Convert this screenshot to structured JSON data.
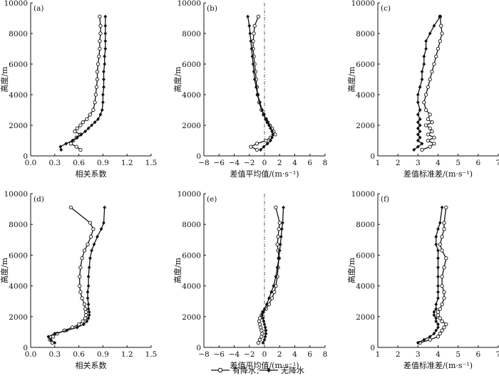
{
  "legend": {
    "rain_label": "有降水",
    "separator": ";",
    "norain_label": "无降水"
  },
  "style": {
    "line_color": "#111111",
    "refline_color": "#555555"
  },
  "chart_data": [
    {
      "type": "line",
      "panel_label": "(a)",
      "xlabel": "相关系数",
      "ylabel": "高度/m",
      "xlim": [
        0,
        1.5
      ],
      "ylim": [
        0,
        10000
      ],
      "xticks": [
        "0.0",
        "0.3",
        "0.6",
        "0.9",
        "1.2",
        "1.5"
      ],
      "yticks": [
        "0",
        "2000",
        "4000",
        "6000",
        "8000",
        "10000"
      ],
      "grid": false,
      "zero_line": false,
      "series": [
        {
          "name": "有降水",
          "marker": "open-circle",
          "x": [
            0.62,
            0.57,
            0.5,
            0.53,
            0.57,
            0.62,
            0.55,
            0.58,
            0.62,
            0.65,
            0.7,
            0.74,
            0.78,
            0.8,
            0.81,
            0.82,
            0.83,
            0.83,
            0.84,
            0.85,
            0.86,
            0.86,
            0.87,
            0.87,
            0.86
          ],
          "y": [
            400,
            600,
            800,
            1000,
            1200,
            1400,
            1600,
            1800,
            2000,
            2200,
            2400,
            2700,
            3000,
            3500,
            4000,
            4500,
            5000,
            5500,
            6000,
            6500,
            7000,
            7500,
            8000,
            8500,
            9100
          ]
        },
        {
          "name": "无降水",
          "marker": "filled-star",
          "x": [
            0.38,
            0.37,
            0.44,
            0.52,
            0.58,
            0.63,
            0.68,
            0.72,
            0.76,
            0.8,
            0.84,
            0.87,
            0.89,
            0.9,
            0.9,
            0.91,
            0.91,
            0.91,
            0.92,
            0.92,
            0.93,
            0.93,
            0.93,
            0.93,
            0.93
          ],
          "y": [
            400,
            600,
            800,
            1000,
            1200,
            1400,
            1600,
            1800,
            2000,
            2200,
            2400,
            2700,
            3000,
            3500,
            4000,
            4500,
            5000,
            5500,
            6000,
            6500,
            7000,
            7500,
            8000,
            8500,
            9100
          ]
        }
      ]
    },
    {
      "type": "line",
      "panel_label": "(b)",
      "xlabel": "差值平均值/(m·s⁻¹)",
      "ylabel": "高度/m",
      "xlim": [
        -8,
        8
      ],
      "ylim": [
        0,
        10000
      ],
      "xticks": [
        "−8",
        "−6",
        "−4",
        "−2",
        "0",
        "2",
        "4",
        "6",
        "8"
      ],
      "yticks": [
        "0",
        "2000",
        "4000",
        "6000",
        "8000",
        "10000"
      ],
      "grid": false,
      "zero_line": true,
      "series": [
        {
          "name": "有降水",
          "marker": "open-circle",
          "x": [
            -1.0,
            -1.8,
            -1.0,
            0.2,
            0.8,
            1.4,
            1.2,
            1.0,
            0.7,
            0.4,
            0.2,
            -0.1,
            -0.4,
            -0.7,
            -0.9,
            -1.0,
            -1.1,
            -1.2,
            -1.3,
            -1.4,
            -1.5,
            -1.5,
            -1.4,
            -1.3,
            -0.8
          ],
          "y": [
            400,
            600,
            800,
            1000,
            1200,
            1400,
            1600,
            1800,
            2000,
            2200,
            2400,
            2700,
            3000,
            3500,
            4000,
            4500,
            5000,
            5500,
            6000,
            6500,
            7000,
            7500,
            8000,
            8500,
            9100
          ]
        },
        {
          "name": "无降水",
          "marker": "filled-star",
          "x": [
            -0.5,
            -0.1,
            0.4,
            0.8,
            1.0,
            1.1,
            1.0,
            0.8,
            0.6,
            0.4,
            0.2,
            -0.1,
            -0.3,
            -0.6,
            -0.9,
            -1.1,
            -1.3,
            -1.4,
            -1.5,
            -1.6,
            -1.7,
            -1.8,
            -1.9,
            -2.0,
            -2.2
          ],
          "y": [
            400,
            600,
            800,
            1000,
            1200,
            1400,
            1600,
            1800,
            2000,
            2200,
            2400,
            2700,
            3000,
            3500,
            4000,
            4500,
            5000,
            5500,
            6000,
            6500,
            7000,
            7500,
            8000,
            8500,
            9100
          ]
        }
      ]
    },
    {
      "type": "line",
      "panel_label": "(c)",
      "xlabel": "差值标准差/(m·s⁻¹)",
      "ylabel": "高度/m",
      "xlim": [
        1,
        7
      ],
      "ylim": [
        0,
        10000
      ],
      "xticks": [
        "1",
        "2",
        "3",
        "4",
        "5",
        "6",
        "7"
      ],
      "yticks": [
        "0",
        "2000",
        "4000",
        "6000",
        "8000",
        "10000"
      ],
      "grid": false,
      "zero_line": false,
      "series": [
        {
          "name": "有降水",
          "marker": "open-circle",
          "x": [
            3.2,
            3.6,
            3.8,
            3.5,
            3.8,
            3.5,
            3.7,
            3.6,
            3.4,
            3.7,
            3.5,
            3.6,
            3.4,
            3.3,
            3.4,
            3.5,
            3.6,
            3.7,
            3.8,
            3.9,
            4.0,
            4.1,
            4.2,
            4.15,
            4.1
          ],
          "y": [
            400,
            600,
            800,
            1000,
            1200,
            1400,
            1600,
            1800,
            2000,
            2200,
            2400,
            2700,
            3000,
            3500,
            4000,
            4500,
            5000,
            5500,
            6000,
            6500,
            7000,
            7500,
            8000,
            8500,
            9100
          ]
        },
        {
          "name": "无降水",
          "marker": "filled-star",
          "x": [
            2.8,
            3.0,
            3.2,
            3.0,
            3.1,
            3.0,
            3.1,
            3.0,
            3.1,
            3.0,
            3.1,
            3.0,
            3.1,
            3.0,
            3.0,
            3.1,
            3.2,
            3.2,
            3.3,
            3.3,
            3.4,
            3.4,
            3.6,
            3.8,
            4.1
          ],
          "y": [
            400,
            600,
            800,
            1000,
            1200,
            1400,
            1600,
            1800,
            2000,
            2200,
            2400,
            2700,
            3000,
            3500,
            4000,
            4500,
            5000,
            5500,
            6000,
            6500,
            7000,
            7500,
            8000,
            8500,
            9100
          ]
        }
      ]
    },
    {
      "type": "line",
      "panel_label": "(d)",
      "xlabel": "相关系数",
      "ylabel": "高度/m",
      "xlim": [
        0,
        1.5
      ],
      "ylim": [
        0,
        10000
      ],
      "xticks": [
        "0.0",
        "0.3",
        "0.6",
        "0.9",
        "1.2",
        "1.5"
      ],
      "yticks": [
        "0",
        "2000",
        "4000",
        "6000",
        "8000",
        "10000"
      ],
      "grid": false,
      "zero_line": false,
      "series": [
        {
          "name": "有降水",
          "marker": "open-circle",
          "x": [
            0.27,
            0.24,
            0.28,
            0.33,
            0.42,
            0.52,
            0.6,
            0.65,
            0.68,
            0.69,
            0.69,
            0.68,
            0.67,
            0.64,
            0.62,
            0.61,
            0.61,
            0.62,
            0.64,
            0.67,
            0.71,
            0.75,
            0.78,
            0.74,
            0.5
          ],
          "y": [
            300,
            500,
            700,
            900,
            1100,
            1300,
            1500,
            1700,
            1900,
            2100,
            2300,
            2500,
            2800,
            3200,
            3600,
            4000,
            4600,
            5200,
            5800,
            6300,
            6700,
            7200,
            7700,
            8100,
            9100
          ]
        },
        {
          "name": "无降水",
          "marker": "filled-star",
          "x": [
            0.3,
            0.25,
            0.22,
            0.3,
            0.45,
            0.58,
            0.66,
            0.7,
            0.72,
            0.73,
            0.73,
            0.72,
            0.72,
            0.71,
            0.71,
            0.72,
            0.72,
            0.73,
            0.74,
            0.76,
            0.79,
            0.83,
            0.88,
            0.91,
            0.92
          ],
          "y": [
            300,
            500,
            700,
            900,
            1100,
            1300,
            1500,
            1700,
            1900,
            2100,
            2300,
            2500,
            2800,
            3200,
            3600,
            4000,
            4600,
            5200,
            5800,
            6300,
            6700,
            7200,
            7700,
            8100,
            9100
          ]
        }
      ]
    },
    {
      "type": "line",
      "panel_label": "(e)",
      "xlabel": "差值平均值/(m·s⁻¹)",
      "ylabel": "高度/m",
      "xlim": [
        -8,
        8
      ],
      "ylim": [
        0,
        10000
      ],
      "xticks": [
        "−8",
        "−6",
        "−4",
        "−2",
        "0",
        "2",
        "4",
        "6",
        "8"
      ],
      "yticks": [
        "0",
        "2000",
        "4000",
        "6000",
        "8000",
        "10000"
      ],
      "grid": false,
      "zero_line": true,
      "series": [
        {
          "name": "有降水",
          "marker": "open-circle",
          "x": [
            -0.8,
            -0.6,
            -0.4,
            -0.3,
            -0.4,
            -0.5,
            -0.6,
            -0.7,
            -0.6,
            -0.4,
            -0.2,
            0.2,
            0.6,
            1.0,
            1.3,
            1.5,
            1.7,
            1.8,
            1.9,
            1.8,
            1.7,
            1.8,
            1.9,
            2.0,
            1.5
          ],
          "y": [
            300,
            500,
            700,
            900,
            1100,
            1300,
            1500,
            1700,
            1900,
            2100,
            2300,
            2500,
            2800,
            3200,
            3600,
            4000,
            4600,
            5200,
            5800,
            6300,
            6700,
            7200,
            7700,
            8100,
            9100
          ]
        },
        {
          "name": "无降水",
          "marker": "filled-star",
          "x": [
            -0.2,
            0.0,
            0.1,
            0.2,
            0.2,
            0.1,
            0.0,
            -0.1,
            -0.2,
            -0.3,
            -0.2,
            0.0,
            0.3,
            0.6,
            0.9,
            1.2,
            1.5,
            1.7,
            1.9,
            2.0,
            2.1,
            2.2,
            2.3,
            2.4,
            2.5
          ],
          "y": [
            300,
            500,
            700,
            900,
            1100,
            1300,
            1500,
            1700,
            1900,
            2100,
            2300,
            2500,
            2800,
            3200,
            3600,
            4000,
            4600,
            5200,
            5800,
            6300,
            6700,
            7200,
            7700,
            8100,
            9100
          ]
        }
      ]
    },
    {
      "type": "line",
      "panel_label": "(f)",
      "xlabel": "差值标准差/(m·s⁻¹)",
      "ylabel": "高度/m",
      "xlim": [
        1,
        7
      ],
      "ylim": [
        0,
        10000
      ],
      "xticks": [
        "1",
        "2",
        "3",
        "4",
        "5",
        "6",
        "7"
      ],
      "yticks": [
        "0",
        "2000",
        "4000",
        "6000",
        "8000",
        "10000"
      ],
      "grid": false,
      "zero_line": false,
      "series": [
        {
          "name": "有降水",
          "marker": "open-circle",
          "x": [
            3.1,
            3.6,
            4.0,
            4.1,
            4.2,
            4.3,
            4.4,
            4.2,
            4.1,
            4.0,
            4.0,
            4.1,
            4.2,
            4.3,
            4.3,
            4.2,
            4.2,
            4.3,
            4.4,
            4.2,
            4.1,
            4.2,
            4.3,
            4.3,
            4.4
          ],
          "y": [
            300,
            500,
            700,
            900,
            1100,
            1300,
            1500,
            1700,
            1900,
            2100,
            2300,
            2500,
            2800,
            3200,
            3600,
            4000,
            4600,
            5200,
            5800,
            6300,
            6700,
            7200,
            7700,
            8100,
            9100
          ]
        },
        {
          "name": "无降水",
          "marker": "filled-star",
          "x": [
            3.0,
            3.3,
            3.6,
            3.8,
            3.9,
            4.0,
            4.0,
            3.9,
            3.9,
            3.8,
            3.8,
            3.9,
            3.9,
            4.0,
            4.0,
            4.0,
            4.0,
            4.0,
            4.0,
            4.0,
            3.9,
            3.9,
            4.0,
            4.1,
            4.2
          ],
          "y": [
            300,
            500,
            700,
            900,
            1100,
            1300,
            1500,
            1700,
            1900,
            2100,
            2300,
            2500,
            2800,
            3200,
            3600,
            4000,
            4600,
            5200,
            5800,
            6300,
            6700,
            7200,
            7700,
            8100,
            9100
          ]
        }
      ]
    }
  ]
}
